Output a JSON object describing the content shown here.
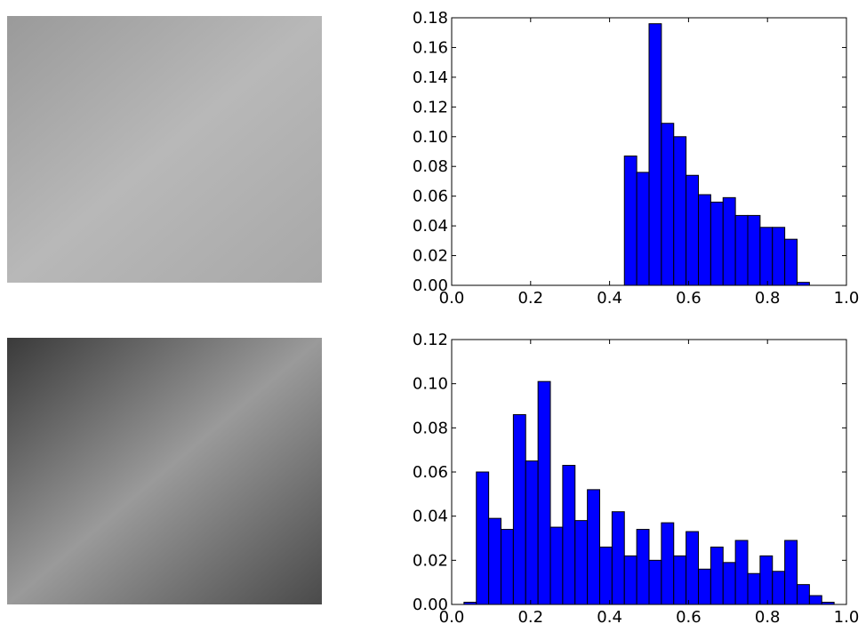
{
  "chart_data": [
    {
      "type": "histogram",
      "color": "#0000ff",
      "bins": [
        0,
        0.03125,
        0.0625,
        0.09375,
        0.125,
        0.15625,
        0.1875,
        0.21875,
        0.25,
        0.28125,
        0.3125,
        0.34375,
        0.375,
        0.40625,
        0.4375,
        0.46875,
        0.5,
        0.53125,
        0.5625,
        0.59375,
        0.625,
        0.65625,
        0.6875,
        0.71875,
        0.75,
        0.78125,
        0.8125,
        0.84375,
        0.875,
        0.90625,
        0.9375,
        0.96875,
        1
      ],
      "values": [
        0,
        0,
        0,
        0,
        0,
        0,
        0,
        0,
        0,
        0,
        0,
        0,
        0,
        0,
        0.087,
        0.076,
        0.176,
        0.109,
        0.1,
        0.074,
        0.061,
        0.056,
        0.059,
        0.047,
        0.047,
        0.039,
        0.039,
        0.031,
        0.002,
        0,
        0,
        0
      ],
      "xlim": [
        0,
        1
      ],
      "xticks": [
        {
          "value": 0,
          "label": "0.0"
        },
        {
          "value": 0.2,
          "label": "0.2"
        },
        {
          "value": 0.4,
          "label": "0.4"
        },
        {
          "value": 0.6,
          "label": "0.6"
        },
        {
          "value": 0.8,
          "label": "0.8"
        },
        {
          "value": 1,
          "label": "1.0"
        }
      ],
      "ylim": [
        0,
        0.18
      ],
      "yticks": [
        {
          "value": 0,
          "label": "0.00"
        },
        {
          "value": 0.02,
          "label": "0.02"
        },
        {
          "value": 0.04,
          "label": "0.04"
        },
        {
          "value": 0.06,
          "label": "0.06"
        },
        {
          "value": 0.08,
          "label": "0.08"
        },
        {
          "value": 0.1,
          "label": "0.10"
        },
        {
          "value": 0.12,
          "label": "0.12"
        },
        {
          "value": 0.14,
          "label": "0.14"
        },
        {
          "value": 0.16,
          "label": "0.16"
        },
        {
          "value": 0.18,
          "label": "0.18"
        }
      ]
    },
    {
      "type": "histogram",
      "color": "#0000ff",
      "bins": [
        0,
        0.03125,
        0.0625,
        0.09375,
        0.125,
        0.15625,
        0.1875,
        0.21875,
        0.25,
        0.28125,
        0.3125,
        0.34375,
        0.375,
        0.40625,
        0.4375,
        0.46875,
        0.5,
        0.53125,
        0.5625,
        0.59375,
        0.625,
        0.65625,
        0.6875,
        0.71875,
        0.75,
        0.78125,
        0.8125,
        0.84375,
        0.875,
        0.90625,
        0.9375,
        0.96875,
        1
      ],
      "values": [
        0,
        0.001,
        0.06,
        0.039,
        0.034,
        0.086,
        0.065,
        0.101,
        0.035,
        0.063,
        0.038,
        0.052,
        0.026,
        0.042,
        0.022,
        0.034,
        0.02,
        0.037,
        0.022,
        0.033,
        0.016,
        0.026,
        0.019,
        0.029,
        0.014,
        0.022,
        0.015,
        0.029,
        0.009,
        0.004,
        0.001,
        0
      ],
      "xlim": [
        0,
        1
      ],
      "xticks": [
        {
          "value": 0,
          "label": "0.0"
        },
        {
          "value": 0.2,
          "label": "0.2"
        },
        {
          "value": 0.4,
          "label": "0.4"
        },
        {
          "value": 0.6,
          "label": "0.6"
        },
        {
          "value": 0.8,
          "label": "0.8"
        },
        {
          "value": 1,
          "label": "1.0"
        }
      ],
      "ylim": [
        0,
        0.12
      ],
      "yticks": [
        {
          "value": 0,
          "label": "0.00"
        },
        {
          "value": 0.02,
          "label": "0.02"
        },
        {
          "value": 0.04,
          "label": "0.04"
        },
        {
          "value": 0.06,
          "label": "0.06"
        },
        {
          "value": 0.08,
          "label": "0.08"
        },
        {
          "value": 0.1,
          "label": "0.10"
        },
        {
          "value": 0.12,
          "label": "0.12"
        }
      ]
    }
  ]
}
